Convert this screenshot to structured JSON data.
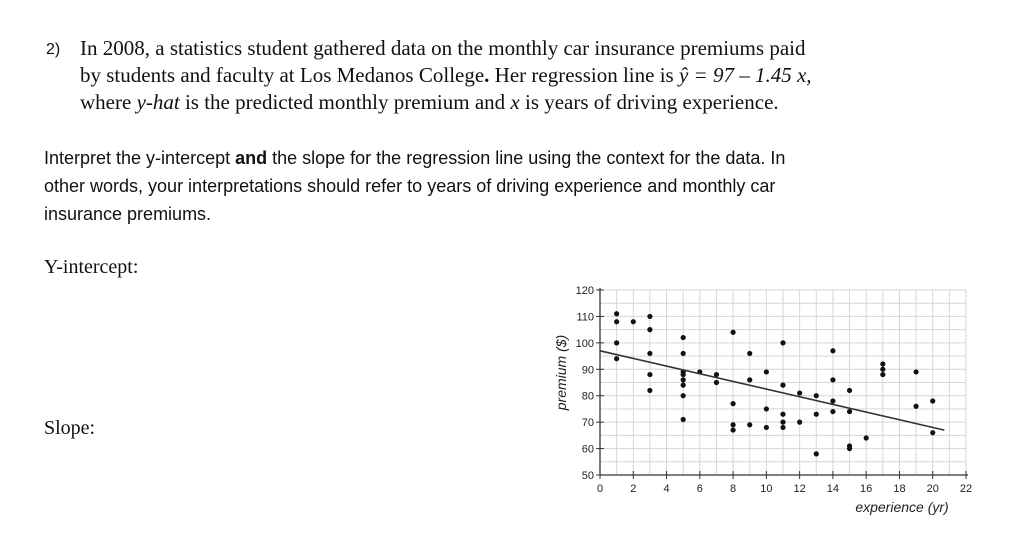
{
  "question": {
    "number": "2)",
    "lines": [
      {
        "parts": [
          {
            "t": "In 2008, a statistics student gathered data on the monthly car insurance premiums paid",
            "s": ""
          }
        ]
      },
      {
        "parts": [
          {
            "t": "by students and faculty at Los Medanos College",
            "s": ""
          },
          {
            "t": ".",
            "s": "bold"
          },
          {
            "t": " Her regression line is ",
            "s": ""
          },
          {
            "t": "ŷ = 97 – 1.45 x,",
            "s": "ital"
          }
        ]
      },
      {
        "parts": [
          {
            "t": "where ",
            "s": ""
          },
          {
            "t": "y-hat",
            "s": "ital"
          },
          {
            "t": " is the predicted monthly premium and ",
            "s": ""
          },
          {
            "t": "x",
            "s": "ital"
          },
          {
            "t": " is years of driving experience.",
            "s": ""
          }
        ]
      }
    ]
  },
  "instructions": {
    "lines": [
      {
        "parts": [
          {
            "t": "Interpret the y-intercept ",
            "s": ""
          },
          {
            "t": "and",
            "s": "bold"
          },
          {
            "t": " the slope for the regression line using the context for the data. In",
            "s": ""
          }
        ]
      },
      {
        "parts": [
          {
            "t": "other words, your interpretations should refer to years of driving experience and monthly car",
            "s": ""
          }
        ]
      },
      {
        "parts": [
          {
            "t": "insurance premiums.",
            "s": ""
          }
        ]
      }
    ]
  },
  "labels": {
    "y_intercept": "Y-intercept:",
    "slope": "Slope:"
  },
  "chart_data": {
    "type": "scatter",
    "xlabel": "experience (yr)",
    "ylabel": "premium ($)",
    "xlim": [
      0,
      22
    ],
    "ylim": [
      50,
      120
    ],
    "xticks": [
      0,
      2,
      4,
      6,
      8,
      10,
      12,
      14,
      16,
      18,
      20,
      22
    ],
    "yticks": [
      50,
      60,
      70,
      80,
      90,
      100,
      110,
      120
    ],
    "grid": true,
    "regression": {
      "intercept": 97,
      "slope": -1.45
    },
    "points": [
      [
        1,
        111
      ],
      [
        1,
        108
      ],
      [
        1,
        100
      ],
      [
        1,
        94
      ],
      [
        2,
        108
      ],
      [
        3,
        105
      ],
      [
        3,
        110
      ],
      [
        3,
        96
      ],
      [
        3,
        88
      ],
      [
        3,
        82
      ],
      [
        5,
        102
      ],
      [
        5,
        96
      ],
      [
        5,
        88
      ],
      [
        5,
        84
      ],
      [
        5,
        86
      ],
      [
        5,
        89
      ],
      [
        5,
        80
      ],
      [
        5,
        71
      ],
      [
        6,
        89
      ],
      [
        7,
        88
      ],
      [
        7,
        85
      ],
      [
        8,
        104
      ],
      [
        8,
        77
      ],
      [
        8,
        67
      ],
      [
        8,
        69
      ],
      [
        9,
        96
      ],
      [
        9,
        86
      ],
      [
        9,
        69
      ],
      [
        10,
        89
      ],
      [
        10,
        75
      ],
      [
        10,
        68
      ],
      [
        11,
        100
      ],
      [
        11,
        84
      ],
      [
        11,
        73
      ],
      [
        11,
        70
      ],
      [
        11,
        68
      ],
      [
        12,
        81
      ],
      [
        12,
        70
      ],
      [
        13,
        73
      ],
      [
        13,
        80
      ],
      [
        13,
        58
      ],
      [
        14,
        97
      ],
      [
        14,
        86
      ],
      [
        14,
        78
      ],
      [
        14,
        74
      ],
      [
        15,
        74
      ],
      [
        15,
        82
      ],
      [
        15,
        60
      ],
      [
        15,
        61
      ],
      [
        16,
        64
      ],
      [
        17,
        92
      ],
      [
        17,
        90
      ],
      [
        17,
        88
      ],
      [
        19,
        89
      ],
      [
        19,
        76
      ],
      [
        20,
        78
      ],
      [
        20,
        66
      ]
    ]
  }
}
